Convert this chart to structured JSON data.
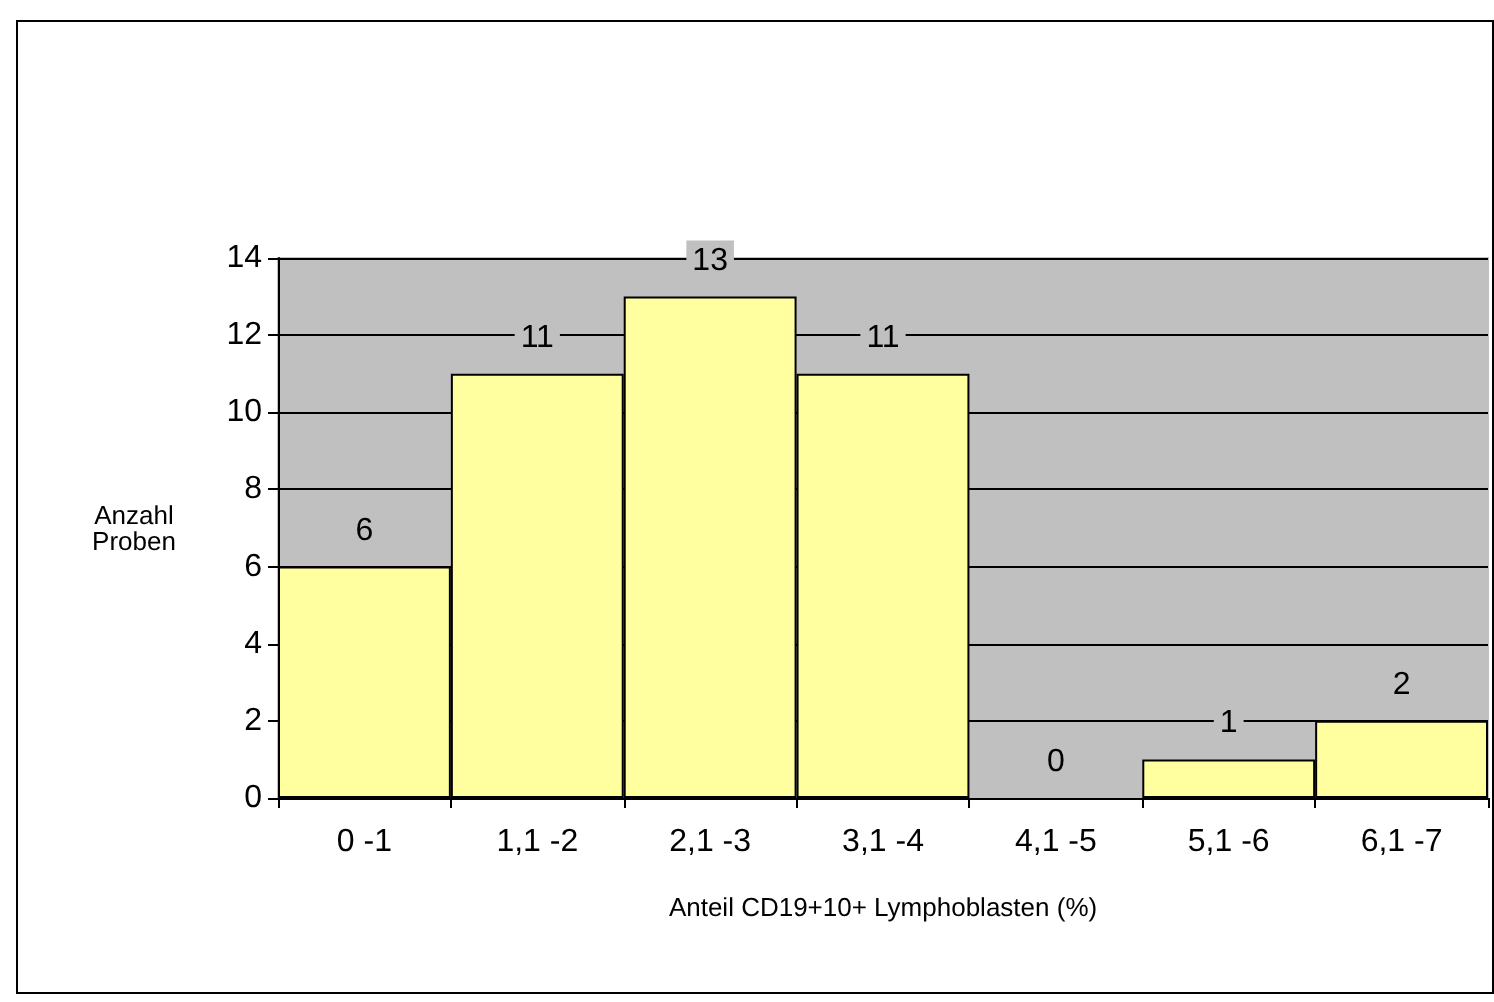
{
  "chart_data": {
    "type": "bar",
    "xlabel": "Anteil CD19+10+ Lymphoblasten (%)",
    "ylabel": "Anzahl Proben",
    "categories": [
      "0 -1",
      "1,1 -2",
      "2,1 -3",
      "3,1 -4",
      "4,1 -5",
      "5,1 -6",
      "6,1 -7"
    ],
    "values": [
      6,
      11,
      13,
      11,
      0,
      1,
      2
    ],
    "color": "#ffffa0",
    "ylim": [
      0,
      14
    ],
    "yticks": [
      0,
      2,
      4,
      6,
      8,
      10,
      12,
      14
    ],
    "grid": "y",
    "data_labels": true
  }
}
